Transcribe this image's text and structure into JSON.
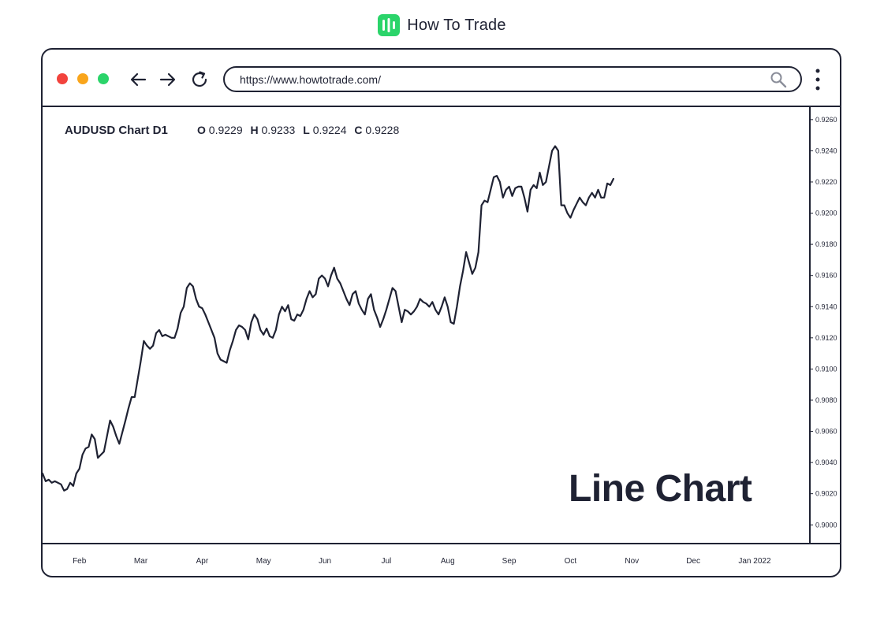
{
  "brand": {
    "name": "How To Trade",
    "accent": "#2bd46a"
  },
  "browser": {
    "url": "https://www.howtotrade.com/",
    "window_dots": [
      "#f2433d",
      "#f9a51b",
      "#2bd46a"
    ]
  },
  "chart_header": {
    "title": "AUDUSD Chart D1",
    "open_label": "O",
    "open": "0.9229",
    "high_label": "H",
    "high": "0.9233",
    "low_label": "L",
    "low": "0.9224",
    "close_label": "C",
    "close": "0.9228"
  },
  "overlay_label": "Line Chart",
  "chart_data": {
    "type": "line",
    "title": "AUDUSD Chart D1",
    "line_color": "#1f2233",
    "ylim": [
      0.8988,
      0.9268
    ],
    "y_ticks": [
      "0.9260",
      "0.9240",
      "0.9220",
      "0.9200",
      "0.9180",
      "0.9160",
      "0.9140",
      "0.9120",
      "0.9100",
      "0.9080",
      "0.9060",
      "0.9040",
      "0.9020",
      "0.9000"
    ],
    "x_ticks": [
      "Feb",
      "Mar",
      "Apr",
      "May",
      "Jun",
      "Jul",
      "Aug",
      "Sep",
      "Oct",
      "Nov",
      "Dec",
      "Jan 2022"
    ],
    "x_tick_positions": [
      1.5,
      2.5,
      3.5,
      4.5,
      5.5,
      6.5,
      7.5,
      8.5,
      9.5,
      10.5,
      11.5,
      12.5
    ],
    "xlim": [
      0.9,
      13.4
    ],
    "grid": false,
    "series": [
      {
        "values": [
          [
            0.9,
            0.9033
          ],
          [
            0.95,
            0.9028
          ],
          [
            1.0,
            0.9029
          ],
          [
            1.05,
            0.9027
          ],
          [
            1.1,
            0.9028
          ],
          [
            1.2,
            0.9026
          ],
          [
            1.25,
            0.9022
          ],
          [
            1.3,
            0.9023
          ],
          [
            1.35,
            0.9027
          ],
          [
            1.4,
            0.9025
          ],
          [
            1.45,
            0.9033
          ],
          [
            1.5,
            0.9036
          ],
          [
            1.55,
            0.9045
          ],
          [
            1.6,
            0.9049
          ],
          [
            1.65,
            0.905
          ],
          [
            1.7,
            0.9058
          ],
          [
            1.75,
            0.9055
          ],
          [
            1.8,
            0.9043
          ],
          [
            1.9,
            0.9047
          ],
          [
            2.0,
            0.9067
          ],
          [
            2.05,
            0.9063
          ],
          [
            2.1,
            0.9057
          ],
          [
            2.15,
            0.9052
          ],
          [
            2.25,
            0.9067
          ],
          [
            2.3,
            0.9075
          ],
          [
            2.35,
            0.9082
          ],
          [
            2.4,
            0.9082
          ],
          [
            2.5,
            0.9105
          ],
          [
            2.55,
            0.9118
          ],
          [
            2.6,
            0.9115
          ],
          [
            2.65,
            0.9113
          ],
          [
            2.7,
            0.9115
          ],
          [
            2.75,
            0.9123
          ],
          [
            2.8,
            0.9125
          ],
          [
            2.85,
            0.9121
          ],
          [
            2.9,
            0.9122
          ],
          [
            3.0,
            0.912
          ],
          [
            3.05,
            0.912
          ],
          [
            3.1,
            0.9126
          ],
          [
            3.15,
            0.9136
          ],
          [
            3.2,
            0.914
          ],
          [
            3.25,
            0.9152
          ],
          [
            3.3,
            0.9155
          ],
          [
            3.35,
            0.9153
          ],
          [
            3.4,
            0.9145
          ],
          [
            3.45,
            0.914
          ],
          [
            3.5,
            0.9139
          ],
          [
            3.55,
            0.9135
          ],
          [
            3.6,
            0.913
          ],
          [
            3.65,
            0.9125
          ],
          [
            3.7,
            0.912
          ],
          [
            3.75,
            0.911
          ],
          [
            3.8,
            0.9106
          ],
          [
            3.9,
            0.9104
          ],
          [
            3.95,
            0.9112
          ],
          [
            4.0,
            0.9118
          ],
          [
            4.05,
            0.9125
          ],
          [
            4.1,
            0.9128
          ],
          [
            4.15,
            0.9127
          ],
          [
            4.2,
            0.9125
          ],
          [
            4.25,
            0.9119
          ],
          [
            4.3,
            0.913
          ],
          [
            4.35,
            0.9135
          ],
          [
            4.4,
            0.9132
          ],
          [
            4.45,
            0.9125
          ],
          [
            4.5,
            0.9122
          ],
          [
            4.55,
            0.9126
          ],
          [
            4.6,
            0.9121
          ],
          [
            4.65,
            0.912
          ],
          [
            4.7,
            0.9125
          ],
          [
            4.75,
            0.9135
          ],
          [
            4.8,
            0.914
          ],
          [
            4.85,
            0.9137
          ],
          [
            4.9,
            0.9141
          ],
          [
            4.95,
            0.9132
          ],
          [
            5.0,
            0.9131
          ],
          [
            5.05,
            0.9135
          ],
          [
            5.1,
            0.9134
          ],
          [
            5.15,
            0.9138
          ],
          [
            5.2,
            0.9145
          ],
          [
            5.25,
            0.915
          ],
          [
            5.3,
            0.9146
          ],
          [
            5.35,
            0.9148
          ],
          [
            5.4,
            0.9158
          ],
          [
            5.45,
            0.916
          ],
          [
            5.5,
            0.9158
          ],
          [
            5.55,
            0.9153
          ],
          [
            5.6,
            0.916
          ],
          [
            5.65,
            0.9165
          ],
          [
            5.7,
            0.9158
          ],
          [
            5.75,
            0.9155
          ],
          [
            5.8,
            0.915
          ],
          [
            5.85,
            0.9145
          ],
          [
            5.9,
            0.9141
          ],
          [
            5.95,
            0.9148
          ],
          [
            6.0,
            0.915
          ],
          [
            6.05,
            0.9142
          ],
          [
            6.1,
            0.9138
          ],
          [
            6.15,
            0.9135
          ],
          [
            6.2,
            0.9145
          ],
          [
            6.25,
            0.9148
          ],
          [
            6.3,
            0.9138
          ],
          [
            6.35,
            0.9133
          ],
          [
            6.4,
            0.9127
          ],
          [
            6.45,
            0.9132
          ],
          [
            6.5,
            0.9138
          ],
          [
            6.55,
            0.9145
          ],
          [
            6.6,
            0.9152
          ],
          [
            6.65,
            0.915
          ],
          [
            6.7,
            0.914
          ],
          [
            6.75,
            0.913
          ],
          [
            6.8,
            0.9138
          ],
          [
            6.85,
            0.9137
          ],
          [
            6.9,
            0.9135
          ],
          [
            6.95,
            0.9137
          ],
          [
            7.0,
            0.914
          ],
          [
            7.05,
            0.9145
          ],
          [
            7.1,
            0.9143
          ],
          [
            7.15,
            0.9142
          ],
          [
            7.2,
            0.914
          ],
          [
            7.25,
            0.9143
          ],
          [
            7.3,
            0.9138
          ],
          [
            7.35,
            0.9135
          ],
          [
            7.4,
            0.914
          ],
          [
            7.45,
            0.9146
          ],
          [
            7.5,
            0.914
          ],
          [
            7.55,
            0.913
          ],
          [
            7.6,
            0.9129
          ],
          [
            7.65,
            0.914
          ],
          [
            7.7,
            0.9153
          ],
          [
            7.75,
            0.9163
          ],
          [
            7.8,
            0.9175
          ],
          [
            7.85,
            0.9168
          ],
          [
            7.9,
            0.9161
          ],
          [
            7.95,
            0.9165
          ],
          [
            8.0,
            0.9175
          ],
          [
            8.05,
            0.9205
          ],
          [
            8.1,
            0.9208
          ],
          [
            8.15,
            0.9207
          ],
          [
            8.2,
            0.9215
          ],
          [
            8.25,
            0.9223
          ],
          [
            8.3,
            0.9224
          ],
          [
            8.35,
            0.922
          ],
          [
            8.4,
            0.921
          ],
          [
            8.45,
            0.9215
          ],
          [
            8.5,
            0.9217
          ],
          [
            8.55,
            0.9211
          ],
          [
            8.6,
            0.9216
          ],
          [
            8.65,
            0.9217
          ],
          [
            8.7,
            0.9217
          ],
          [
            8.75,
            0.921
          ],
          [
            8.8,
            0.9201
          ],
          [
            8.85,
            0.9215
          ],
          [
            8.9,
            0.9218
          ],
          [
            8.95,
            0.9216
          ],
          [
            9.0,
            0.9226
          ],
          [
            9.05,
            0.9218
          ],
          [
            9.1,
            0.922
          ],
          [
            9.15,
            0.923
          ],
          [
            9.2,
            0.924
          ],
          [
            9.25,
            0.9243
          ],
          [
            9.3,
            0.924
          ],
          [
            9.35,
            0.9205
          ],
          [
            9.4,
            0.9205
          ],
          [
            9.45,
            0.92
          ],
          [
            9.5,
            0.9197
          ],
          [
            9.55,
            0.9202
          ],
          [
            9.6,
            0.9206
          ],
          [
            9.65,
            0.921
          ],
          [
            9.7,
            0.9207
          ],
          [
            9.75,
            0.9205
          ],
          [
            9.8,
            0.921
          ],
          [
            9.85,
            0.9213
          ],
          [
            9.9,
            0.921
          ],
          [
            9.95,
            0.9215
          ],
          [
            10.0,
            0.921
          ],
          [
            10.05,
            0.921
          ],
          [
            10.1,
            0.9219
          ],
          [
            10.15,
            0.9218
          ],
          [
            10.2,
            0.9222
          ]
        ]
      }
    ]
  }
}
